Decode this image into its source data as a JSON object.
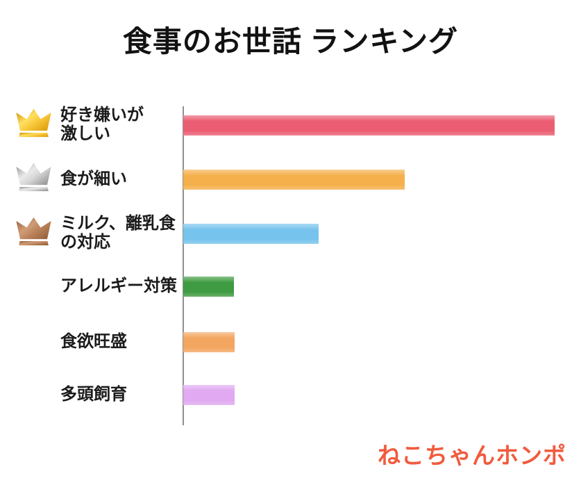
{
  "header": {
    "title": "食事のお世話 ランキング"
  },
  "logo": {
    "text": "ねこちゃんホンポ",
    "color": "#F15B3E"
  },
  "chart_data": {
    "type": "bar",
    "orientation": "horizontal",
    "title": "食事のお世話 ランキング",
    "categories": [
      "好き嫌いが激しい",
      "食が細い",
      "ミルク、離乳食の対応",
      "アレルギー対策",
      "食欲旺盛",
      "多頭飼育"
    ],
    "label_lines": [
      "好き嫌いが\n激しい",
      "食が細い",
      "ミルク、離乳食\nの対応",
      "アレルギー対策",
      "食欲旺盛",
      "多頭飼育"
    ],
    "values": [
      100,
      59.6,
      36.4,
      13.6,
      13.8,
      13.8
    ],
    "value_note": "relative bar lengths; no numeric axis labels shown in chart",
    "colors": [
      "#EB5D72",
      "#F5B04C",
      "#76C3ED",
      "#3F9B41",
      "#F3A660",
      "#E0A9F1"
    ],
    "ranks": [
      1,
      2,
      3,
      null,
      null,
      null
    ],
    "crowns": [
      "gold",
      "silver",
      "bronze",
      null,
      null,
      null
    ],
    "xlabel": "",
    "ylabel": "",
    "legend": false,
    "gridlines": false,
    "axis_line_color": "#8f8f8f"
  }
}
